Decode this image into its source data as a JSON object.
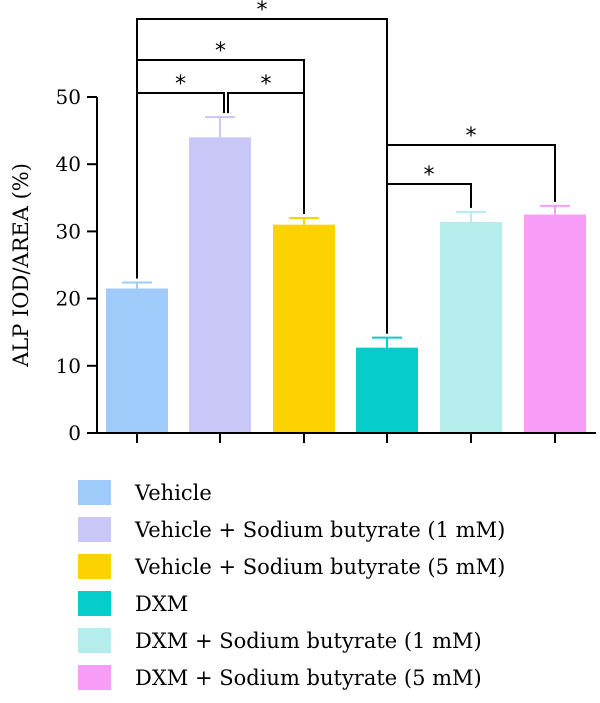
{
  "chart_data": {
    "type": "bar",
    "title": "",
    "xlabel": "",
    "ylabel": "ALP IOD/AREA (%)",
    "ylim": [
      0,
      50
    ],
    "yticks": [
      0,
      10,
      20,
      30,
      40,
      50
    ],
    "grid": false,
    "legend_position": "bottom",
    "categories": [
      "Vehicle",
      "Vehicle + Sodium butyrate (1 mM)",
      "Vehicle + Sodium butyrate (5 mM)",
      "DXM",
      "DXM + Sodium butyrate (1 mM)",
      "DXM + Sodium butyrate (5 mM)"
    ],
    "values": [
      21.5,
      44,
      31,
      12.7,
      31.4,
      32.5
    ],
    "errors": [
      0.9,
      3,
      1,
      1.5,
      1.5,
      1.3
    ],
    "colors": [
      "#9ecbfa",
      "#c9c7f7",
      "#fcd200",
      "#06cccc",
      "#b5ecec",
      "#f79cf7"
    ],
    "significance": [
      {
        "from": 0,
        "to": 1,
        "label": "*"
      },
      {
        "from": 1,
        "to": 2,
        "label": "*"
      },
      {
        "from": 0,
        "to": 2,
        "label": "*"
      },
      {
        "from": 0,
        "to": 3,
        "label": "*"
      },
      {
        "from": 3,
        "to": 4,
        "label": "*"
      },
      {
        "from": 3,
        "to": 5,
        "label": "*"
      }
    ]
  }
}
